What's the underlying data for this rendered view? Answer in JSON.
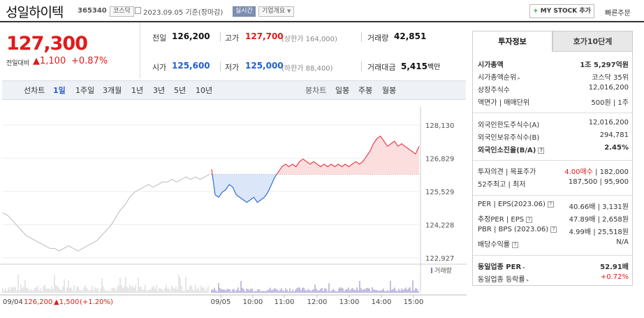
{
  "header": {
    "title": "성일하이텍",
    "code": "365340",
    "market": "코스닥",
    "date": "2023.09.05 기준(장마감)",
    "live": "실시간",
    "corp": "기업개요",
    "mystock": "MY STOCK 추가",
    "quick": "빠른주문"
  },
  "price": {
    "current": "127,300",
    "change_label": "전일대비",
    "change": "▲1,100",
    "change_pct": "+0.87%"
  },
  "quote": {
    "prev_label": "전일",
    "prev": "126,200",
    "high_label": "고가",
    "high": "127,700",
    "upper": "(상한가 164,000)",
    "volume_label": "거래량",
    "volume": "42,851",
    "open_label": "시가",
    "open": "125,600",
    "low_label": "저가",
    "low": "125,000",
    "lower": "(하한가 88,400)",
    "amount_label": "거래대금",
    "amount": "5,415",
    "amount_unit": "백만"
  },
  "periods": {
    "line_label": "선차트",
    "items": [
      "1일",
      "1주일",
      "3개월",
      "1년",
      "3년",
      "5년",
      "10년"
    ],
    "selected": "1일",
    "candle_label": "봉차트",
    "candle_items": [
      "일봉",
      "주봉",
      "월봉"
    ]
  },
  "chart_data": {
    "type": "line",
    "y_ticks": [
      "128,130",
      "126,829",
      "125,529",
      "124,228",
      "122,927"
    ],
    "y_values": [
      128130,
      126829,
      125529,
      124228,
      122927
    ],
    "ylim": [
      122927,
      128130
    ],
    "reference": 126200,
    "x_labels": [
      "09/05",
      "10:00",
      "11:00",
      "12:00",
      "13:00",
      "14:00",
      "15:00"
    ],
    "volume_label": "거래량",
    "prev_day": {
      "date": "09/04",
      "close": "126,200",
      "change": "▲1,500",
      "pct": "(+1.20%)"
    },
    "prev_series": [
      124700,
      124600,
      124400,
      124200,
      124000,
      123800,
      123700,
      123600,
      123500,
      123400,
      123300,
      123300,
      123200,
      123300,
      123400,
      123300,
      123200,
      123300,
      123400,
      123500,
      123600,
      123800,
      124000,
      124200,
      124500,
      124800,
      125000,
      125300,
      125500,
      125600,
      125700,
      125800,
      125700,
      125800,
      125900,
      125900,
      126000,
      125900,
      126000,
      126100,
      126000,
      126100,
      126000,
      126100,
      126200
    ],
    "today_series": [
      126400,
      125400,
      125300,
      125500,
      125600,
      125800,
      125700,
      125400,
      125300,
      125200,
      125100,
      125200,
      125300,
      125100,
      125200,
      125300,
      125500,
      125800,
      126100,
      126300,
      126500,
      126600,
      126500,
      126600,
      126500,
      126700,
      126800,
      126700,
      126600,
      126700,
      126600,
      126500,
      126600,
      126500,
      126600,
      126500,
      126600,
      126500,
      126600,
      126500,
      126600,
      126700,
      126600,
      126700,
      126900,
      127100,
      127400,
      127600,
      127700,
      127500,
      127300,
      127400,
      127500,
      127300,
      127400,
      127300,
      127200,
      127100,
      127000,
      127300
    ]
  },
  "right_panel": {
    "tabs": [
      "투자정보",
      "호가10단계"
    ],
    "rows": [
      {
        "l": "시가총액",
        "r": "1조 5,297억원"
      },
      {
        "l": "시가총액순위",
        "r": "코스닥 35위"
      },
      {
        "l": "상장주식수",
        "r": "12,016,200"
      },
      {
        "l": "액면가 | 매매단위",
        "r": "500원 | 1주"
      },
      {
        "l": "외국인한도주식수(A)",
        "r": "12,016,200"
      },
      {
        "l": "외국인보유주식수(B)",
        "r": "294,781"
      },
      {
        "l": "외국인소진율(B/A)",
        "r": "2.45%"
      },
      {
        "l": "투자의견 | 목표주가",
        "r1": "4.00매수",
        "r2": "182,000"
      },
      {
        "l": "52주최고 | 최저",
        "r": "187,500 | 95,900"
      },
      {
        "l": "PER | EPS(2023.06)",
        "r": "40.66배 | 3,131원"
      },
      {
        "l": "추정PER | EPS",
        "r": "47.89배 | 2,658원"
      },
      {
        "l": "PBR | BPS (2023.06)",
        "r": "4.99배 | 25,518원"
      },
      {
        "l": "배당수익률",
        "r": "N/A"
      },
      {
        "l": "동일업종 PER",
        "r": "52.91배"
      },
      {
        "l": "동일업종 등락률",
        "r": "+0.72%"
      }
    ]
  }
}
